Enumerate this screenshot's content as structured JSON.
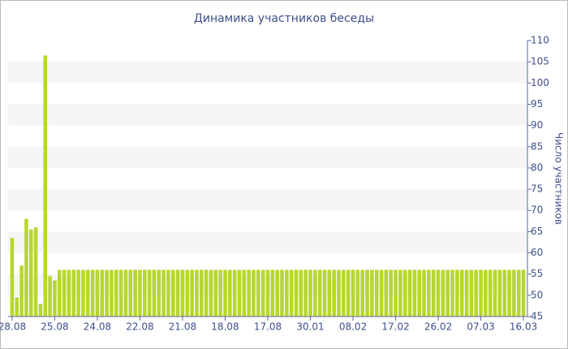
{
  "chart_data": {
    "type": "bar",
    "title": "Динамика участников беседы",
    "y_axis_label": "Число участников",
    "categories": [
      "28.08",
      null,
      null,
      null,
      null,
      null,
      null,
      null,
      null,
      "25.08",
      null,
      null,
      null,
      null,
      null,
      null,
      null,
      null,
      "24.08",
      null,
      null,
      null,
      null,
      null,
      null,
      null,
      null,
      "22.08",
      null,
      null,
      null,
      null,
      null,
      null,
      null,
      null,
      "21.08",
      null,
      null,
      null,
      null,
      null,
      null,
      null,
      null,
      "18.08",
      null,
      null,
      null,
      null,
      null,
      null,
      null,
      null,
      "17.08",
      null,
      null,
      null,
      null,
      null,
      null,
      null,
      null,
      "30.01",
      null,
      null,
      null,
      null,
      null,
      null,
      null,
      null,
      "08.02",
      null,
      null,
      null,
      null,
      null,
      null,
      null,
      null,
      "17.02",
      null,
      null,
      null,
      null,
      null,
      null,
      null,
      null,
      "26.02",
      null,
      null,
      null,
      null,
      null,
      null,
      null,
      null,
      "07.03",
      null,
      null,
      null,
      null,
      null,
      null,
      null,
      null,
      "16.03"
    ],
    "values": [
      63.5,
      49.5,
      57,
      68,
      65.5,
      66,
      48,
      106.5,
      54.5,
      53.5,
      56,
      56,
      56,
      56,
      56,
      56,
      56,
      56,
      56,
      56,
      56,
      56,
      56,
      56,
      56,
      56,
      56,
      56,
      56,
      56,
      56,
      56,
      56,
      56,
      56,
      56,
      56,
      56,
      56,
      56,
      56,
      56,
      56,
      56,
      56,
      56,
      56,
      56,
      56,
      56,
      56,
      56,
      56,
      56,
      56,
      56,
      56,
      56,
      56,
      56,
      56,
      56,
      56,
      56,
      56,
      56,
      56,
      56,
      56,
      56,
      56,
      56,
      56,
      56,
      56,
      56,
      56,
      56,
      56,
      56,
      56,
      56,
      56,
      56,
      56,
      56,
      56,
      56,
      56,
      56,
      56,
      56,
      56,
      56,
      56,
      56,
      56,
      56,
      56,
      56,
      56,
      56,
      56,
      56,
      56,
      56,
      56,
      56,
      56
    ],
    "color": "#b5d82b",
    "ylim": [
      45,
      110
    ],
    "yticks": [
      45,
      50,
      55,
      60,
      65,
      70,
      75,
      80,
      85,
      90,
      95,
      100,
      105,
      110
    ],
    "grid": "bands",
    "y_axis_side": "right"
  }
}
